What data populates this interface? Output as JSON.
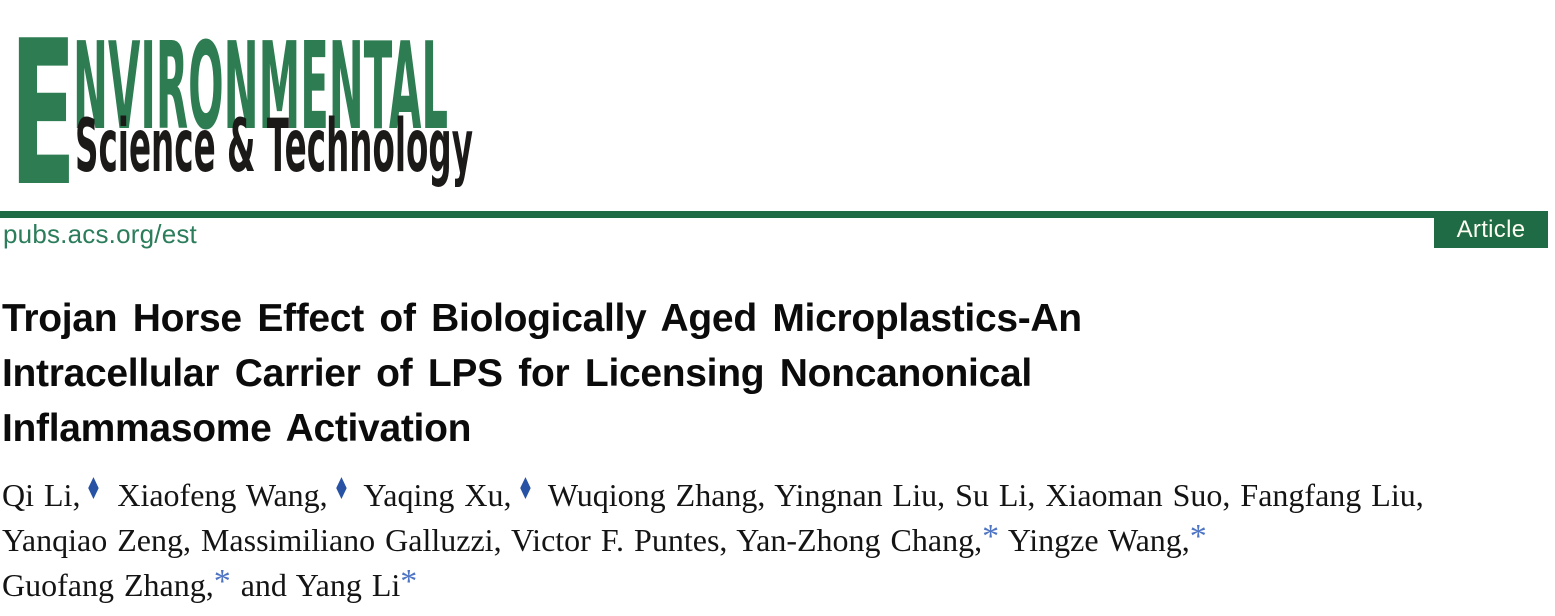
{
  "colors": {
    "logo-green": "#2E7D52",
    "logo-black": "#1C1A19",
    "rule-green": "#1E6B46",
    "link-green": "#2B7D5B",
    "badge-bg": "#1E6B46",
    "badge-text": "#FDFDF0",
    "title-text": "#0B0B0B",
    "author-text": "#141414",
    "marker-diamond-blue": "#2853A4",
    "marker-asterisk-blue": "#4E74C4"
  },
  "masthead": {
    "brand_title": "ENVIRONMENTAL",
    "brand_subtitle": "Science & Technology",
    "site_link": "pubs.acs.org/est",
    "badge_label": "Article"
  },
  "article": {
    "title_lines": [
      "Trojan Horse Effect of Biologically Aged Microplastics-An",
      "Intracellular Carrier of LPS for Licensing Noncanonical",
      "Inflammasome Activation"
    ],
    "marker_glyphs": {
      "diamond": "♦",
      "asterisk": "*"
    },
    "author_lines": [
      [
        {
          "text": "Qi Li,",
          "marker": "diamond"
        },
        {
          "text": " Xiaofeng Wang,",
          "marker": "diamond"
        },
        {
          "text": " Yaqing Xu,",
          "marker": "diamond"
        },
        {
          "text": " Wuqiong Zhang,"
        },
        {
          "text": " Yingnan Liu,"
        },
        {
          "text": " Su Li,"
        },
        {
          "text": " Xiaoman Suo,"
        },
        {
          "text": " Fangfang Liu,"
        }
      ],
      [
        {
          "text": "Yanqiao Zeng,"
        },
        {
          "text": " Massimiliano Galluzzi,"
        },
        {
          "text": " Victor F. Puntes,"
        },
        {
          "text": " Yan-Zhong Chang,",
          "marker": "asterisk"
        },
        {
          "text": " Yingze Wang,",
          "marker": "asterisk"
        }
      ],
      [
        {
          "text": "Guofang Zhang,",
          "marker": "asterisk"
        },
        {
          "text": " and Yang Li",
          "marker": "asterisk"
        }
      ]
    ]
  }
}
